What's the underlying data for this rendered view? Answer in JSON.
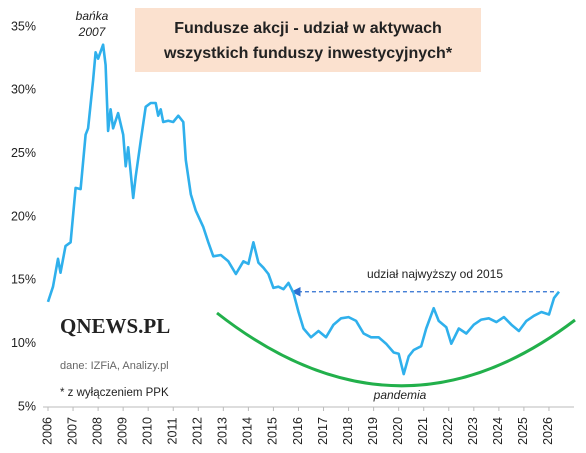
{
  "chart_data": {
    "type": "line",
    "title_lines": [
      "Fundusze akcji - udział w aktywach",
      "wszystkich funduszy inwestycyjnych*"
    ],
    "peak_label": [
      "bańka",
      "2007"
    ],
    "annotation": {
      "text": "udział najwyższy od 2015",
      "y": 14.1,
      "x": [
        2015.8,
        2026.2
      ]
    },
    "curve_label": "pandemia",
    "logo": "QNEWS.PL",
    "source": "dane: IZFiA, Analizy.pl",
    "footnote": "* z wyłączeniem PPK",
    "color": "#2fb0ec",
    "grid": false,
    "xlim": [
      2005.8,
      2027.0
    ],
    "xticks": [
      2006,
      2007,
      2008,
      2009,
      2010,
      2011,
      2012,
      2013,
      2014,
      2015,
      2016,
      2017,
      2018,
      2019,
      2020,
      2021,
      2022,
      2023,
      2024,
      2025,
      2026
    ],
    "ylim": [
      5,
      35
    ],
    "yticks": [
      {
        "value": 5,
        "label": "5%"
      },
      {
        "value": 10,
        "label": "10%"
      },
      {
        "value": 15,
        "label": "15%"
      },
      {
        "value": 20,
        "label": "20%"
      },
      {
        "value": 25,
        "label": "25%"
      },
      {
        "value": 30,
        "label": "30%"
      },
      {
        "value": 35,
        "label": "35%"
      }
    ],
    "x": [
      2006.0,
      2006.2,
      2006.4,
      2006.5,
      2006.7,
      2006.9,
      2007.1,
      2007.3,
      2007.5,
      2007.6,
      2007.8,
      2007.9,
      2008.0,
      2008.2,
      2008.3,
      2008.4,
      2008.5,
      2008.6,
      2008.8,
      2009.0,
      2009.1,
      2009.2,
      2009.4,
      2009.5,
      2009.7,
      2009.9,
      2010.1,
      2010.3,
      2010.4,
      2010.5,
      2010.6,
      2010.8,
      2011.0,
      2011.2,
      2011.4,
      2011.5,
      2011.7,
      2011.9,
      2012.2,
      2012.4,
      2012.6,
      2012.9,
      2013.2,
      2013.5,
      2013.8,
      2014.0,
      2014.2,
      2014.4,
      2014.6,
      2014.8,
      2015.0,
      2015.2,
      2015.4,
      2015.6,
      2015.8,
      2016.0,
      2016.2,
      2016.5,
      2016.8,
      2017.1,
      2017.4,
      2017.7,
      2018.0,
      2018.3,
      2018.6,
      2018.9,
      2019.2,
      2019.5,
      2019.8,
      2020.0,
      2020.2,
      2020.4,
      2020.6,
      2020.9,
      2021.1,
      2021.4,
      2021.6,
      2021.9,
      2022.1,
      2022.4,
      2022.7,
      2023.0,
      2023.3,
      2023.6,
      2023.9,
      2024.2,
      2024.5,
      2024.8,
      2025.1,
      2025.4,
      2025.7,
      2026.0,
      2026.2,
      2026.4
    ],
    "values": [
      13.3,
      14.5,
      16.7,
      15.6,
      17.7,
      18.0,
      22.3,
      22.2,
      26.5,
      27.0,
      30.8,
      33.0,
      32.5,
      33.6,
      32.0,
      26.8,
      28.5,
      27.0,
      28.2,
      26.5,
      24.0,
      25.5,
      21.5,
      23.2,
      26.0,
      28.7,
      29.0,
      29.0,
      28.0,
      28.5,
      27.5,
      27.6,
      27.5,
      28.0,
      27.5,
      24.5,
      21.8,
      20.5,
      19.2,
      18.0,
      16.9,
      17.0,
      16.5,
      15.5,
      16.5,
      16.3,
      18.0,
      16.4,
      16.0,
      15.5,
      14.4,
      14.5,
      14.3,
      14.8,
      14.0,
      12.5,
      11.2,
      10.5,
      11.0,
      10.5,
      11.5,
      12.0,
      12.1,
      11.8,
      10.8,
      10.5,
      10.5,
      10.0,
      9.3,
      9.2,
      7.6,
      9.0,
      9.5,
      9.8,
      11.2,
      12.8,
      11.8,
      11.3,
      10.0,
      11.2,
      10.8,
      11.5,
      11.9,
      12.0,
      11.7,
      12.1,
      11.5,
      11.0,
      11.8,
      12.2,
      12.5,
      12.3,
      13.6,
      14.1
    ]
  }
}
